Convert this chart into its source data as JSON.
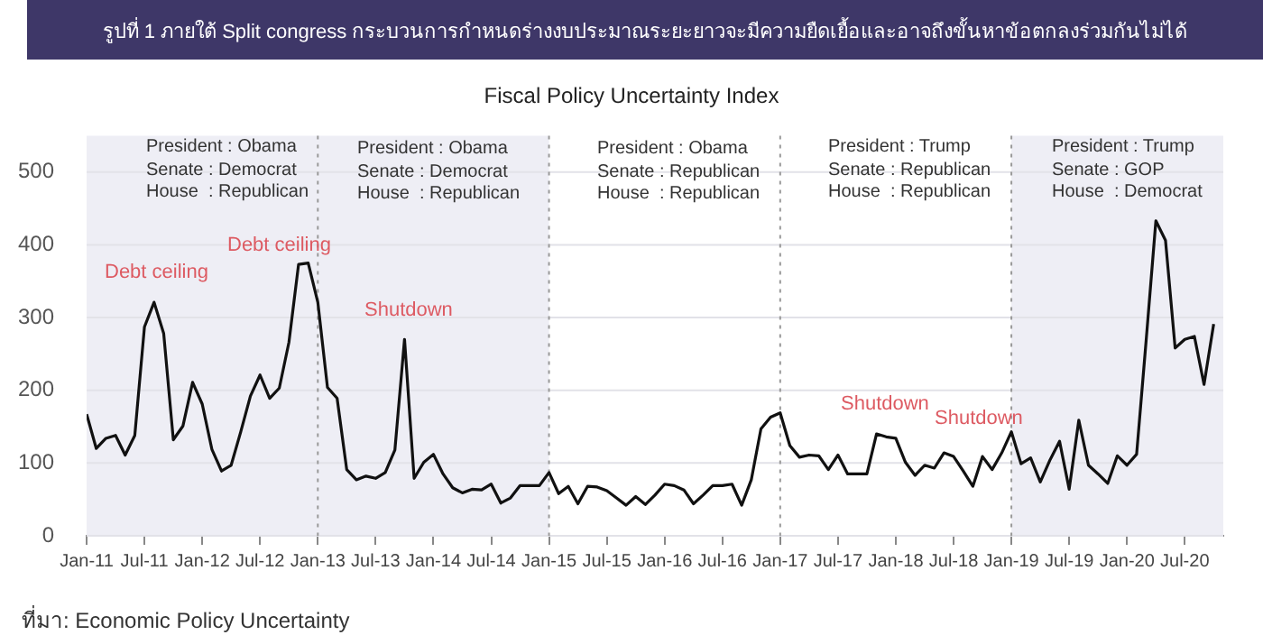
{
  "chart_data": {
    "type": "line",
    "title": "รูปที่ 1  ภายใต้ Split congress กระบวนการกำหนดร่างงบประมาณระยะยาวจะมีความยืดเยื้อและอาจถึงขั้นหาข้อตกลงร่วมกันไม่ได้",
    "subtitle": "Fiscal Policy Uncertainty Index",
    "x": [
      "2011-01",
      "2011-02",
      "2011-03",
      "2011-04",
      "2011-05",
      "2011-06",
      "2011-07",
      "2011-08",
      "2011-09",
      "2011-10",
      "2011-11",
      "2011-12",
      "2012-01",
      "2012-02",
      "2012-03",
      "2012-04",
      "2012-05",
      "2012-06",
      "2012-07",
      "2012-08",
      "2012-09",
      "2012-10",
      "2012-11",
      "2012-12",
      "2013-01",
      "2013-02",
      "2013-03",
      "2013-04",
      "2013-05",
      "2013-06",
      "2013-07",
      "2013-08",
      "2013-09",
      "2013-10",
      "2013-11",
      "2013-12",
      "2014-01",
      "2014-02",
      "2014-03",
      "2014-04",
      "2014-05",
      "2014-06",
      "2014-07",
      "2014-08",
      "2014-09",
      "2014-10",
      "2014-11",
      "2014-12",
      "2015-01",
      "2015-02",
      "2015-03",
      "2015-04",
      "2015-05",
      "2015-06",
      "2015-07",
      "2015-08",
      "2015-09",
      "2015-10",
      "2015-11",
      "2015-12",
      "2016-01",
      "2016-02",
      "2016-03",
      "2016-04",
      "2016-05",
      "2016-06",
      "2016-07",
      "2016-08",
      "2016-09",
      "2016-10",
      "2016-11",
      "2016-12",
      "2017-01",
      "2017-02",
      "2017-03",
      "2017-04",
      "2017-05",
      "2017-06",
      "2017-07",
      "2017-08",
      "2017-09",
      "2017-10",
      "2017-11",
      "2017-12",
      "2018-01",
      "2018-02",
      "2018-03",
      "2018-04",
      "2018-05",
      "2018-06",
      "2018-07",
      "2018-08",
      "2018-09",
      "2018-10",
      "2018-11",
      "2018-12",
      "2019-01",
      "2019-02",
      "2019-03",
      "2019-04",
      "2019-05",
      "2019-06",
      "2019-07",
      "2019-08",
      "2019-09",
      "2019-10",
      "2019-11",
      "2019-12",
      "2020-01",
      "2020-02",
      "2020-03",
      "2020-04",
      "2020-05",
      "2020-06",
      "2020-07",
      "2020-08",
      "2020-09",
      "2020-10"
    ],
    "series": [
      {
        "color": "#111111",
        "values": [
          167,
          120,
          134,
          138,
          111,
          138,
          287,
          321,
          278,
          132,
          151,
          211,
          181,
          119,
          89,
          97,
          143,
          192,
          221,
          189,
          203,
          266,
          373,
          375,
          321,
          204,
          189,
          91,
          77,
          82,
          79,
          87,
          118,
          270,
          79,
          101,
          112,
          85,
          66,
          59,
          64,
          63,
          71,
          45,
          52,
          69,
          69,
          69,
          87,
          58,
          68,
          44,
          68,
          67,
          62,
          52,
          42,
          54,
          43,
          56,
          71,
          69,
          63,
          44,
          56,
          69,
          69,
          71,
          42,
          77,
          147,
          163,
          169,
          124,
          108,
          111,
          110,
          91,
          111,
          85,
          85,
          85,
          140,
          136,
          134,
          101,
          83,
          97,
          93,
          114,
          109,
          89,
          68,
          109,
          91,
          114,
          143,
          99,
          107,
          74,
          104,
          130,
          64,
          159,
          97,
          85,
          72,
          110,
          97,
          112,
          270,
          433,
          406,
          258,
          270,
          274,
          208,
          291
        ]
      }
    ],
    "xlim": [
      "2011-01",
      "2020-11"
    ],
    "xticks": [
      {
        "value": "2011-01",
        "label": "Jan-11"
      },
      {
        "value": "2011-07",
        "label": "Jul-11"
      },
      {
        "value": "2012-01",
        "label": "Jan-12"
      },
      {
        "value": "2012-07",
        "label": "Jul-12"
      },
      {
        "value": "2013-01",
        "label": "Jan-13"
      },
      {
        "value": "2013-07",
        "label": "Jul-13"
      },
      {
        "value": "2014-01",
        "label": "Jan-14"
      },
      {
        "value": "2014-07",
        "label": "Jul-14"
      },
      {
        "value": "2015-01",
        "label": "Jan-15"
      },
      {
        "value": "2015-07",
        "label": "Jul-15"
      },
      {
        "value": "2016-01",
        "label": "Jan-16"
      },
      {
        "value": "2016-07",
        "label": "Jul-16"
      },
      {
        "value": "2017-01",
        "label": "Jan-17"
      },
      {
        "value": "2017-07",
        "label": "Jul-17"
      },
      {
        "value": "2018-01",
        "label": "Jan-18"
      },
      {
        "value": "2018-07",
        "label": "Jul-18"
      },
      {
        "value": "2019-01",
        "label": "Jan-19"
      },
      {
        "value": "2019-07",
        "label": "Jul-19"
      },
      {
        "value": "2020-01",
        "label": "Jan-20"
      },
      {
        "value": "2020-07",
        "label": "Jul-20"
      }
    ],
    "ylim": [
      0,
      550
    ],
    "yticks": [
      0,
      100,
      200,
      300,
      400,
      500
    ],
    "grid": "y",
    "legend": false,
    "bands": [
      {
        "axis": "x",
        "from": "2011-01",
        "to": "2015-01",
        "color": "#eeeef5"
      },
      {
        "axis": "x",
        "from": "2019-01",
        "to": "2020-11",
        "color": "#eeeef5"
      }
    ],
    "ref_lines": [
      {
        "axis": "x",
        "value": "2013-01",
        "color": "#999999",
        "line_style": "dotted"
      },
      {
        "axis": "x",
        "value": "2015-01",
        "color": "#999999",
        "line_style": "dotted"
      },
      {
        "axis": "x",
        "value": "2017-01",
        "color": "#999999",
        "line_style": "dotted"
      },
      {
        "axis": "x",
        "value": "2019-01",
        "color": "#999999",
        "line_style": "dotted"
      }
    ],
    "annotations": [
      "President : Obama\nSenate : Democrat\nHouse  : Republican",
      "President : Obama\nSenate : Democrat\nHouse  : Republican",
      "President : Obama\nSenate : Republican\nHouse  : Republican",
      "President : Trump\nSenate : Republican\nHouse  : Republican",
      "President : Trump\nSenate : GOP\nHouse  : Democrat",
      "Debt ceiling",
      "Debt ceiling",
      "Shutdown",
      "Shutdown",
      "Shutdown",
      "ที่มา: Economic Policy Uncertainty"
    ]
  }
}
